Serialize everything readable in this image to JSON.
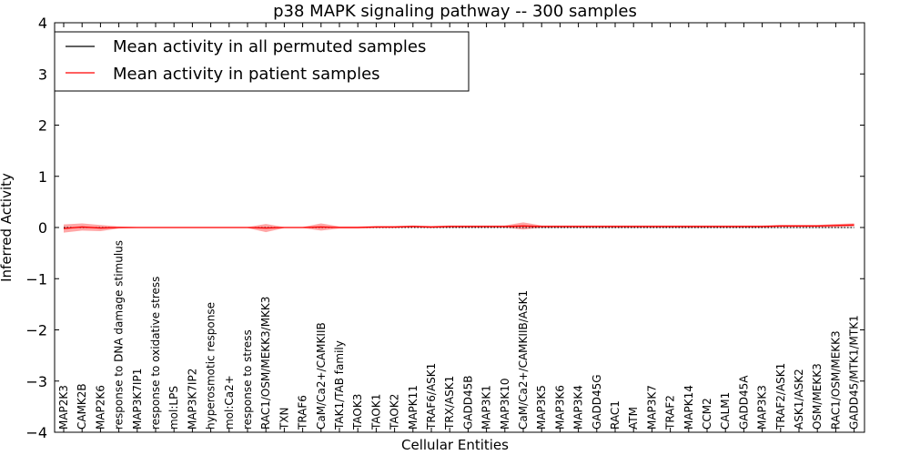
{
  "chart_data": {
    "type": "line",
    "title": "p38 MAPK signaling pathway -- 300 samples",
    "xlabel": "Cellular Entities",
    "ylabel": "Inferred Activity",
    "ylim": [
      -4,
      4
    ],
    "yticks": [
      -4,
      -3,
      -2,
      -1,
      0,
      1,
      2,
      3,
      4
    ],
    "ytick_labels": [
      "−4",
      "−3",
      "−2",
      "−1",
      "0",
      "1",
      "2",
      "3",
      "4"
    ],
    "legend_position": "top-left",
    "categories": [
      "MAP2K3",
      "CAMK2B",
      "MAP2K6",
      "response to DNA damage stimulus",
      "MAP3K7IP1",
      "response to oxidative stress",
      "mol:LPS",
      "MAP3K7IP2",
      "hyperosmotic response",
      "mol:Ca2+",
      "response to stress",
      "RAC1/OSM/MEKK3/MKK3",
      "TXN",
      "TRAF6",
      "CaM/Ca2+/CAMKIIB",
      "TAK1/TAB family",
      "TAOK3",
      "TAOK1",
      "TAOK2",
      "MAPK11",
      "TRAF6/ASK1",
      "TRX/ASK1",
      "GADD45B",
      "MAP3K1",
      "MAP3K10",
      "CaM/Ca2+/CAMKIIB/ASK1",
      "MAP3K5",
      "MAP3K6",
      "MAP3K4",
      "GADD45G",
      "RAC1",
      "ATM",
      "MAP3K7",
      "TRAF2",
      "MAPK14",
      "CCM2",
      "CALM1",
      "GADD45A",
      "MAP3K3",
      "TRAF2/ASK1",
      "ASK1/ASK2",
      "OSM/MEKK3",
      "RAC1/OSM/MEKK3",
      "GADD45/MTK1/MTK1"
    ],
    "series": [
      {
        "name": "Mean activity in all permuted samples",
        "color": "#000000",
        "style": "dotted",
        "values": [
          0,
          0,
          0,
          0,
          0,
          0,
          0,
          0,
          0,
          0,
          0,
          0,
          0,
          0,
          0,
          0,
          0,
          0,
          0,
          0,
          0,
          0,
          0,
          0,
          0,
          0,
          0,
          0,
          0,
          0,
          0,
          0,
          0,
          0,
          0,
          0,
          0,
          0,
          0,
          0,
          0,
          0,
          0,
          0
        ],
        "band_half_width": [
          0.01,
          0.01,
          0.01,
          0.01,
          0.005,
          0.005,
          0.005,
          0.005,
          0.005,
          0.005,
          0.005,
          0.005,
          0.005,
          0.005,
          0.005,
          0.005,
          0.005,
          0.005,
          0.005,
          0.005,
          0.01,
          0.01,
          0.01,
          0.01,
          0.01,
          0.01,
          0.02,
          0.02,
          0.02,
          0.025,
          0.02,
          0.02,
          0.02,
          0.02,
          0.02,
          0.02,
          0.02,
          0.02,
          0.02,
          0.02,
          0.02,
          0.02,
          0.02,
          0.02
        ]
      },
      {
        "name": "Mean activity in patient samples",
        "color": "#ff0000",
        "style": "solid",
        "values": [
          -0.02,
          0.01,
          -0.01,
          0.0,
          0.0,
          0.0,
          0.0,
          0.0,
          0.0,
          0.0,
          0.0,
          -0.01,
          0.0,
          0.0,
          0.01,
          0.0,
          0.0,
          0.01,
          0.01,
          0.02,
          0.01,
          0.02,
          0.02,
          0.02,
          0.02,
          0.03,
          0.02,
          0.02,
          0.02,
          0.02,
          0.02,
          0.02,
          0.02,
          0.02,
          0.02,
          0.02,
          0.02,
          0.02,
          0.02,
          0.03,
          0.03,
          0.03,
          0.04,
          0.05
        ],
        "band_half_width": [
          0.08,
          0.07,
          0.06,
          0.02,
          0.01,
          0.01,
          0.01,
          0.01,
          0.01,
          0.01,
          0.01,
          0.08,
          0.01,
          0.01,
          0.07,
          0.02,
          0.02,
          0.02,
          0.02,
          0.02,
          0.02,
          0.02,
          0.02,
          0.02,
          0.02,
          0.07,
          0.02,
          0.02,
          0.02,
          0.02,
          0.02,
          0.02,
          0.02,
          0.02,
          0.02,
          0.02,
          0.02,
          0.02,
          0.02,
          0.02,
          0.02,
          0.02,
          0.03,
          0.03
        ]
      }
    ]
  }
}
